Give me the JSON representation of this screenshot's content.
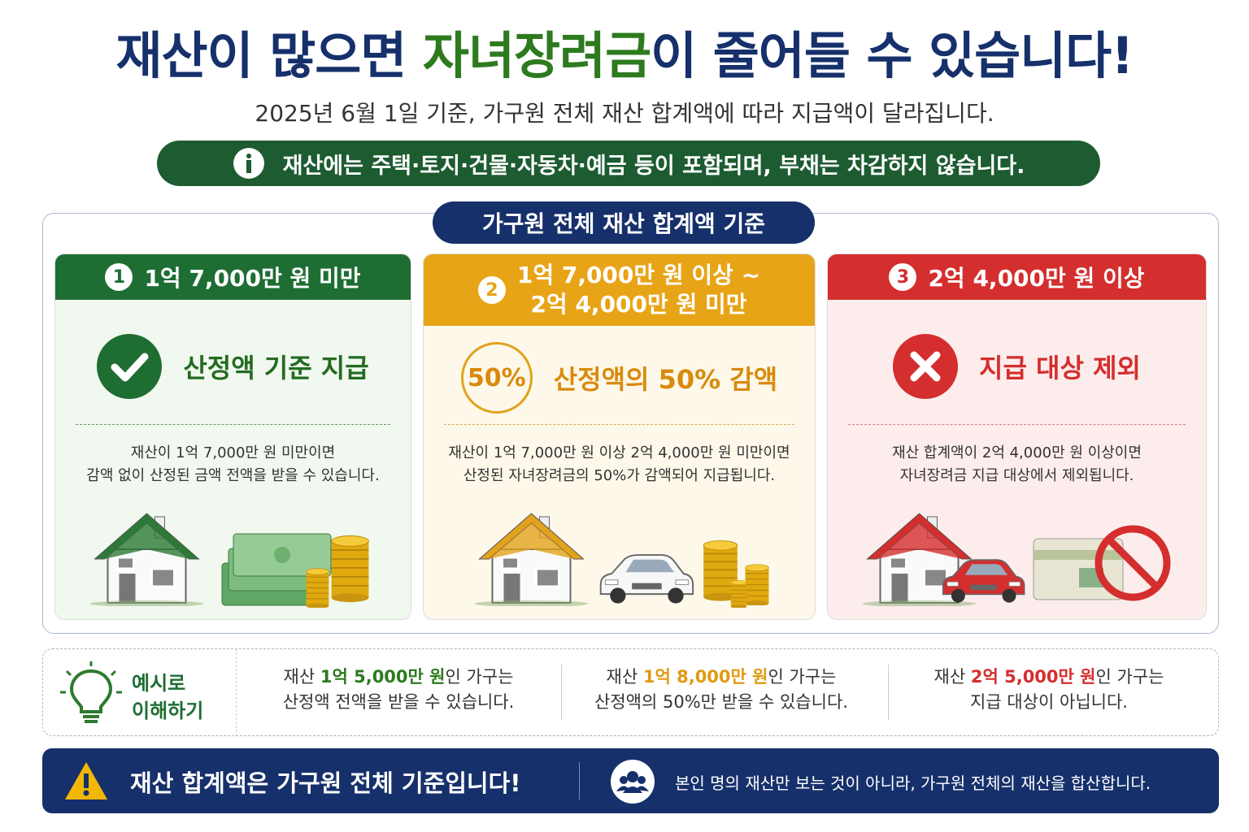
{
  "header": {
    "title": {
      "before": "재산이 많으면",
      "highlight": "자녀장려금",
      "after": "이 줄어들 수 있습니다!"
    },
    "subtitle": "2025년 6월 1일 기준, 가구원 전체 재산 합계액에 따라 지급액이 달라집니다.",
    "notice": "재산에는 주택·토지·건물·자동차·예금 등이 포함되며, 부채는 차감하지 않습니다."
  },
  "section": {
    "label": "가구원 전체 재산 합계액 기준"
  },
  "cards": [
    {
      "number": "1",
      "range": [
        "1억 7,000만 원 미만"
      ],
      "result": "산정액 기준 지급",
      "description": [
        "재산이 1억 7,000만 원 미만이면",
        "감액 없이 산정된 금액 전액을 받을 수 있습니다."
      ]
    },
    {
      "number": "2",
      "range": [
        "1억 7,000만 원 이상 ~",
        "2억 4,000만 원 미만"
      ],
      "badge": "50%",
      "result": "산정액의 50% 감액",
      "description": [
        "재산이 1억 7,000만 원 이상 2억 4,000만 원 미만이면",
        "산정된 자녀장려금의 50%가 감액되어 지급됩니다."
      ]
    },
    {
      "number": "3",
      "range": [
        "2억 4,000만 원 이상"
      ],
      "result": "지급 대상 제외",
      "description": [
        "재산 합계액이 2억 4,000만 원 이상이면",
        "자녀장려금 지급 대상에서 제외됩니다."
      ]
    }
  ],
  "examples": {
    "label": [
      "예시로",
      "이해하기"
    ],
    "items": [
      {
        "prefix": "재산",
        "amount": "1억 5,000만 원",
        "suffix": "인 가구는",
        "line2": "산정액 전액을 받을 수 있습니다."
      },
      {
        "prefix": "재산",
        "amount": "1억 8,000만 원",
        "suffix": "인 가구는",
        "line2": "산정액의 50%만 받을 수 있습니다."
      },
      {
        "prefix": "재산",
        "amount": "2억 5,000만 원",
        "suffix": "인 가구는",
        "line2": "지급 대상이 아닙니다."
      }
    ]
  },
  "footer": {
    "headline": "재산 합계액은 가구원 전체 기준입니다!",
    "detail": "본인 명의 재산만 보는 것이 아니라, 가구원 전체의 재산을 합산합니다."
  }
}
